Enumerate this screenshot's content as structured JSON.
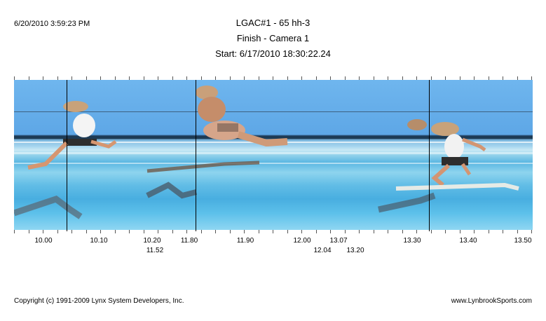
{
  "header": {
    "timestamp": "6/20/2010 3:59:23 PM",
    "event_title": "LGAC#1 - 65 hh-3",
    "camera": "Finish - Camera 1",
    "start": "Start: 6/17/2010 18:30:22.24"
  },
  "time_labels": {
    "row1": [
      "10.00",
      "10.10",
      "10.20",
      "11.80",
      "11.90",
      "12.00",
      "13.07",
      "13.30",
      "13.40",
      "13.50"
    ],
    "row2": [
      "11.52",
      "12.04",
      "13.20"
    ]
  },
  "footer": {
    "copyright": "Copyright (c) 1991-2009 Lynx System Developers, Inc.",
    "website": "www.LynbrookSports.com"
  },
  "colors": {
    "sky": "#6fb6ee",
    "track": "#5ab6e2",
    "cursor_line": "#000000"
  }
}
